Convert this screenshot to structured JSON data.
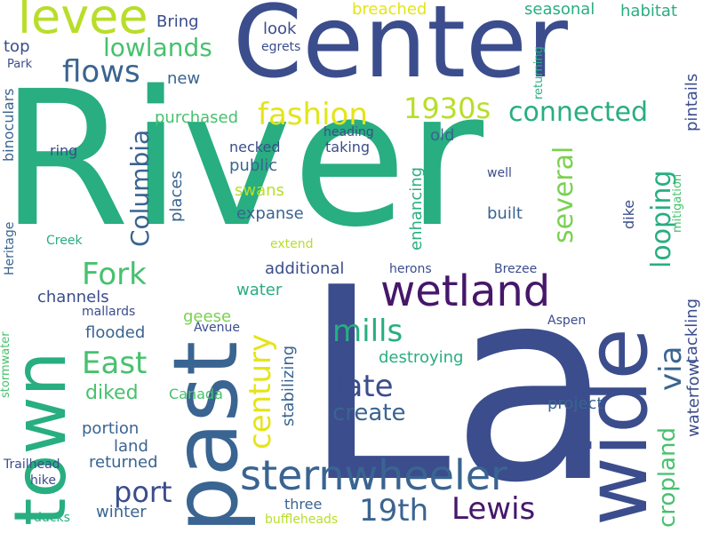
{
  "colors": {
    "background": "#ffffff",
    "indigo": "#3b4d8c",
    "slate": "#3a6491",
    "purple": "#46176a",
    "teal": "#28ae80",
    "green": "#47c16e",
    "lime": "#7ad151",
    "yellowgreen": "#b8de29",
    "yellow": "#e4e419"
  },
  "words": [
    {
      "text": "River",
      "color": "#28ae80",
      "size": 210,
      "rot": 0
    },
    {
      "text": "La",
      "color": "#3b4d8c",
      "size": 300,
      "rot": 0
    },
    {
      "text": "Center",
      "color": "#3b4d8c",
      "size": 112,
      "rot": 0
    },
    {
      "text": "past",
      "color": "#3a6491",
      "size": 100,
      "rot": -90
    },
    {
      "text": "town",
      "color": "#28ae80",
      "size": 80,
      "rot": -90
    },
    {
      "text": "wide",
      "color": "#3b4d8c",
      "size": 95,
      "rot": -90
    },
    {
      "text": "levee",
      "color": "#b8de29",
      "size": 54,
      "rot": 0
    },
    {
      "text": "wetland",
      "color": "#46176a",
      "size": 48,
      "rot": 0
    },
    {
      "text": "sternwheeler",
      "color": "#3a6491",
      "size": 46,
      "rot": 0
    },
    {
      "text": "fashion",
      "color": "#e4e419",
      "size": 34,
      "rot": 0
    },
    {
      "text": "1930s",
      "color": "#b8de29",
      "size": 32,
      "rot": 0
    },
    {
      "text": "connected",
      "color": "#28ae80",
      "size": 30,
      "rot": 0
    },
    {
      "text": "flows",
      "color": "#3a6491",
      "size": 34,
      "rot": 0
    },
    {
      "text": "lowlands",
      "color": "#47c16e",
      "size": 28,
      "rot": 0
    },
    {
      "text": "Columbia",
      "color": "#3a6491",
      "size": 28,
      "rot": -90
    },
    {
      "text": "Fork",
      "color": "#47c16e",
      "size": 34,
      "rot": 0
    },
    {
      "text": "East",
      "color": "#47c16e",
      "size": 34,
      "rot": 0
    },
    {
      "text": "century",
      "color": "#e4e419",
      "size": 34,
      "rot": -90
    },
    {
      "text": "mills",
      "color": "#28ae80",
      "size": 34,
      "rot": 0
    },
    {
      "text": "late",
      "color": "#3b4d8c",
      "size": 34,
      "rot": 0
    },
    {
      "text": "create",
      "color": "#3a6491",
      "size": 26,
      "rot": 0
    },
    {
      "text": "port",
      "color": "#3b4d8c",
      "size": 32,
      "rot": 0
    },
    {
      "text": "19th",
      "color": "#3a6491",
      "size": 34,
      "rot": 0
    },
    {
      "text": "Lewis",
      "color": "#46176a",
      "size": 34,
      "rot": 0
    },
    {
      "text": "several",
      "color": "#7ad151",
      "size": 30,
      "rot": -90
    },
    {
      "text": "looping",
      "color": "#28ae80",
      "size": 30,
      "rot": -90
    },
    {
      "text": "via",
      "color": "#3a6491",
      "size": 34,
      "rot": -90
    },
    {
      "text": "cropland",
      "color": "#47c16e",
      "size": 26,
      "rot": -90
    },
    {
      "text": "cackling",
      "color": "#3b4d8c",
      "size": 18,
      "rot": -90
    },
    {
      "text": "waterfowl",
      "color": "#3b4d8c",
      "size": 18,
      "rot": -90
    },
    {
      "text": "pintails",
      "color": "#3b4d8c",
      "size": 18,
      "rot": -90
    },
    {
      "text": "mitigation",
      "color": "#47c16e",
      "size": 13,
      "rot": -90
    },
    {
      "text": "returning",
      "color": "#28ae80",
      "size": 13,
      "rot": -90
    },
    {
      "text": "Bring",
      "color": "#3b4d8c",
      "size": 18,
      "rot": 0
    },
    {
      "text": "look",
      "color": "#3b4d8c",
      "size": 18,
      "rot": 0
    },
    {
      "text": "egrets",
      "color": "#3b4d8c",
      "size": 14,
      "rot": 0
    },
    {
      "text": "breached",
      "color": "#e4e419",
      "size": 18,
      "rot": 0
    },
    {
      "text": "seasonal",
      "color": "#28ae80",
      "size": 18,
      "rot": 0
    },
    {
      "text": "habitat",
      "color": "#28ae80",
      "size": 18,
      "rot": 0
    },
    {
      "text": "new",
      "color": "#3a6491",
      "size": 18,
      "rot": 0
    },
    {
      "text": "purchased",
      "color": "#47c16e",
      "size": 18,
      "rot": 0
    },
    {
      "text": "old",
      "color": "#3a6491",
      "size": 18,
      "rot": 0
    },
    {
      "text": "heading",
      "color": "#3b4d8c",
      "size": 14,
      "rot": 0
    },
    {
      "text": "taking",
      "color": "#3b4d8c",
      "size": 16,
      "rot": 0
    },
    {
      "text": "necked",
      "color": "#3b4d8c",
      "size": 16,
      "rot": 0
    },
    {
      "text": "public",
      "color": "#3a6491",
      "size": 18,
      "rot": 0
    },
    {
      "text": "swans",
      "color": "#b8de29",
      "size": 18,
      "rot": 0
    },
    {
      "text": "expanse",
      "color": "#3a6491",
      "size": 18,
      "rot": 0
    },
    {
      "text": "places",
      "color": "#3a6491",
      "size": 18,
      "rot": -90
    },
    {
      "text": "enhancing",
      "color": "#28ae80",
      "size": 18,
      "rot": -90
    },
    {
      "text": "built",
      "color": "#3a6491",
      "size": 18,
      "rot": 0
    },
    {
      "text": "well",
      "color": "#3b4d8c",
      "size": 14,
      "rot": 0
    },
    {
      "text": "dike",
      "color": "#3b4d8c",
      "size": 16,
      "rot": -90
    },
    {
      "text": "binoculars",
      "color": "#3a6491",
      "size": 16,
      "rot": -90
    },
    {
      "text": "top",
      "color": "#3b4d8c",
      "size": 18,
      "rot": 0
    },
    {
      "text": "Park",
      "color": "#3b4d8c",
      "size": 13,
      "rot": 0
    },
    {
      "text": "ring",
      "color": "#3b4d8c",
      "size": 16,
      "rot": 0
    },
    {
      "text": "Creek",
      "color": "#28ae80",
      "size": 14,
      "rot": 0
    },
    {
      "text": "Heritage",
      "color": "#3a6491",
      "size": 14,
      "rot": -90
    },
    {
      "text": "extend",
      "color": "#b8de29",
      "size": 14,
      "rot": 0
    },
    {
      "text": "additional",
      "color": "#3b4d8c",
      "size": 18,
      "rot": 0
    },
    {
      "text": "herons",
      "color": "#3b4d8c",
      "size": 14,
      "rot": 0
    },
    {
      "text": "Brezee",
      "color": "#3b4d8c",
      "size": 14,
      "rot": 0
    },
    {
      "text": "channels",
      "color": "#3b4d8c",
      "size": 18,
      "rot": 0
    },
    {
      "text": "water",
      "color": "#28ae80",
      "size": 18,
      "rot": 0
    },
    {
      "text": "mallards",
      "color": "#3b4d8c",
      "size": 14,
      "rot": 0
    },
    {
      "text": "geese",
      "color": "#7ad151",
      "size": 18,
      "rot": 0
    },
    {
      "text": "stormwater",
      "color": "#47c16e",
      "size": 13,
      "rot": -90
    },
    {
      "text": "Avenue",
      "color": "#3b4d8c",
      "size": 14,
      "rot": 0
    },
    {
      "text": "Aspen",
      "color": "#3b4d8c",
      "size": 14,
      "rot": 0
    },
    {
      "text": "flooded",
      "color": "#3a6491",
      "size": 18,
      "rot": 0
    },
    {
      "text": "destroying",
      "color": "#28ae80",
      "size": 18,
      "rot": 0
    },
    {
      "text": "stabilizing",
      "color": "#3a6491",
      "size": 18,
      "rot": -90
    },
    {
      "text": "diked",
      "color": "#47c16e",
      "size": 22,
      "rot": 0
    },
    {
      "text": "Canada",
      "color": "#47c16e",
      "size": 16,
      "rot": 0
    },
    {
      "text": "project",
      "color": "#3a6491",
      "size": 18,
      "rot": 0
    },
    {
      "text": "portion",
      "color": "#3a6491",
      "size": 18,
      "rot": 0
    },
    {
      "text": "land",
      "color": "#3a6491",
      "size": 18,
      "rot": 0
    },
    {
      "text": "returned",
      "color": "#3a6491",
      "size": 18,
      "rot": 0
    },
    {
      "text": "Trailhead",
      "color": "#3b4d8c",
      "size": 14,
      "rot": 0
    },
    {
      "text": "hike",
      "color": "#3b4d8c",
      "size": 14,
      "rot": 0
    },
    {
      "text": "winter",
      "color": "#3a6491",
      "size": 18,
      "rot": 0
    },
    {
      "text": "ducks",
      "color": "#28ae80",
      "size": 14,
      "rot": 0
    },
    {
      "text": "three",
      "color": "#3a6491",
      "size": 16,
      "rot": 0
    },
    {
      "text": "buffleheads",
      "color": "#b8de29",
      "size": 14,
      "rot": 0
    }
  ]
}
